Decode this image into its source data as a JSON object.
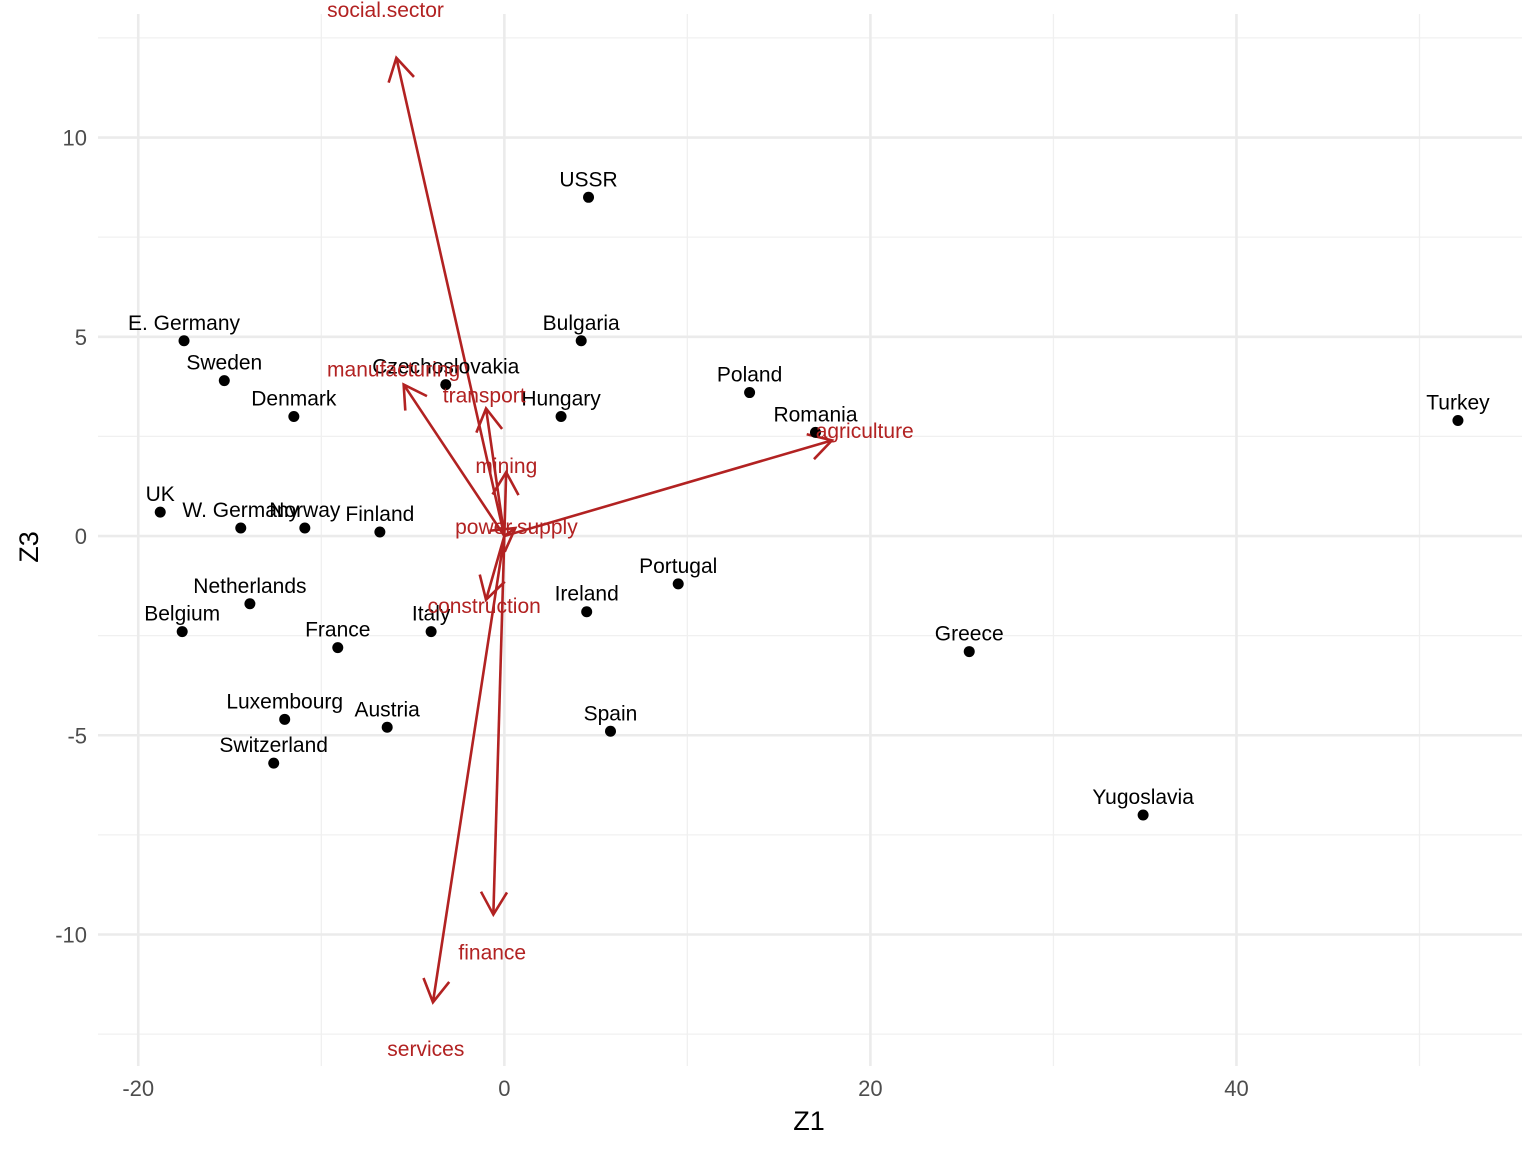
{
  "chart_data": {
    "type": "scatter",
    "title": "",
    "xlabel": "Z1",
    "ylabel": "Z3",
    "xlim": [
      -22.2,
      55.6
    ],
    "ylim": [
      -13.3,
      13.1
    ],
    "x_ticks": [
      -20,
      0,
      20,
      40
    ],
    "y_ticks": [
      -10,
      -5,
      0,
      5,
      10
    ],
    "x_tick_labels": [
      "-20",
      "0",
      "20",
      "40"
    ],
    "y_tick_labels": [
      "-10",
      "-5",
      "0",
      "5",
      "10"
    ],
    "grid": true,
    "points": [
      {
        "label": "E. Germany",
        "x": -17.5,
        "y": 4.9
      },
      {
        "label": "Sweden",
        "x": -15.3,
        "y": 3.9
      },
      {
        "label": "Denmark",
        "x": -11.5,
        "y": 3.0
      },
      {
        "label": "Czechoslovakia",
        "x": -3.2,
        "y": 3.8
      },
      {
        "label": "UK",
        "x": -18.8,
        "y": 0.6
      },
      {
        "label": "W. Germany",
        "x": -14.4,
        "y": 0.2
      },
      {
        "label": "Norway",
        "x": -10.9,
        "y": 0.2
      },
      {
        "label": "Finland",
        "x": -6.8,
        "y": 0.1
      },
      {
        "label": "Netherlands",
        "x": -13.9,
        "y": -1.7
      },
      {
        "label": "Belgium",
        "x": -17.6,
        "y": -2.4
      },
      {
        "label": "France",
        "x": -9.1,
        "y": -2.8
      },
      {
        "label": "Italy",
        "x": -4.0,
        "y": -2.4
      },
      {
        "label": "Luxembourg",
        "x": -12.0,
        "y": -4.6
      },
      {
        "label": "Austria",
        "x": -6.4,
        "y": -4.8
      },
      {
        "label": "Switzerland",
        "x": -12.6,
        "y": -5.7
      },
      {
        "label": "USSR",
        "x": 4.6,
        "y": 8.5
      },
      {
        "label": "Bulgaria",
        "x": 4.2,
        "y": 4.9
      },
      {
        "label": "Hungary",
        "x": 3.1,
        "y": 3.0
      },
      {
        "label": "Poland",
        "x": 13.4,
        "y": 3.6
      },
      {
        "label": "Romania",
        "x": 17.0,
        "y": 2.6
      },
      {
        "label": "Portugal",
        "x": 9.5,
        "y": -1.2
      },
      {
        "label": "Ireland",
        "x": 4.5,
        "y": -1.9
      },
      {
        "label": "Spain",
        "x": 5.8,
        "y": -4.9
      },
      {
        "label": "Greece",
        "x": 25.4,
        "y": -2.9
      },
      {
        "label": "Yugoslavia",
        "x": 34.9,
        "y": -7.0
      },
      {
        "label": "Turkey",
        "x": 52.1,
        "y": 2.9
      }
    ],
    "loadings": [
      {
        "label": "social.sector",
        "x": -5.9,
        "y": 12.0
      },
      {
        "label": "manufacturing",
        "x": -5.5,
        "y": 3.8
      },
      {
        "label": "transport",
        "x": -1.0,
        "y": 3.2
      },
      {
        "label": "mining",
        "x": 0.1,
        "y": 1.6
      },
      {
        "label": "agriculture",
        "x": 17.9,
        "y": 2.4
      },
      {
        "label": "power.supply",
        "x": 0.6,
        "y": 0.2
      },
      {
        "label": "construction",
        "x": -1.0,
        "y": -1.6
      },
      {
        "label": "finance",
        "x": -0.6,
        "y": -9.5
      },
      {
        "label": "services",
        "x": -3.9,
        "y": -11.7
      }
    ]
  }
}
